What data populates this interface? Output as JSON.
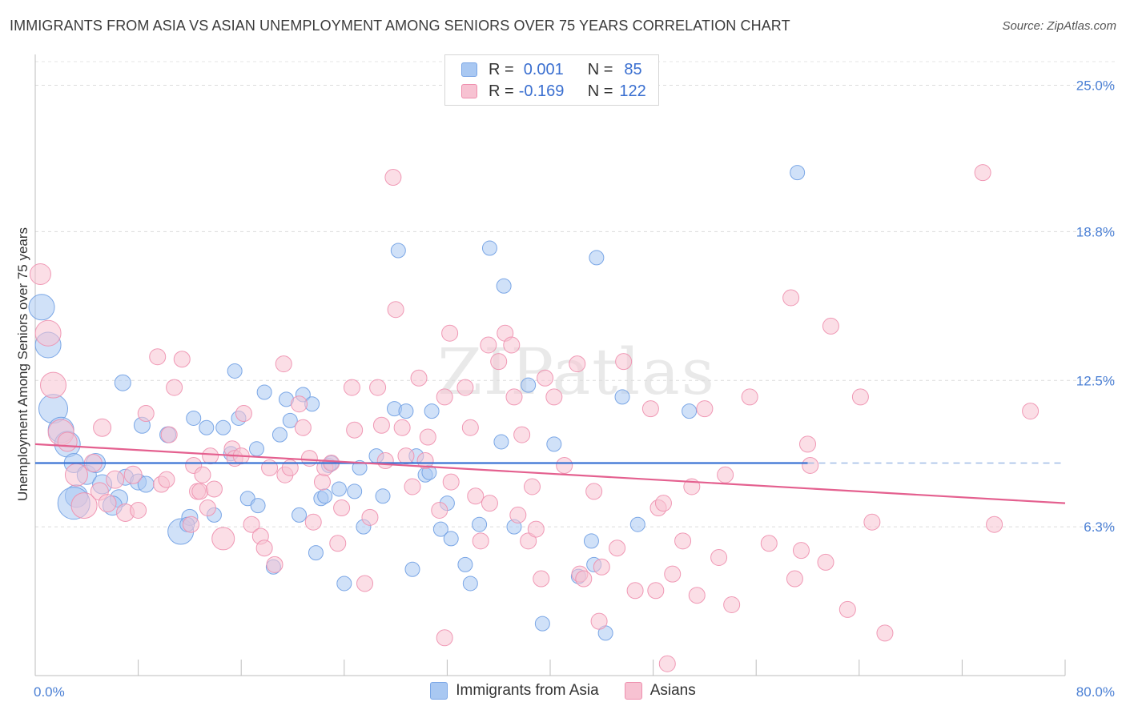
{
  "title": "IMMIGRANTS FROM ASIA VS ASIAN UNEMPLOYMENT AMONG SENIORS OVER 75 YEARS CORRELATION CHART",
  "source": "Source: ZipAtlas.com",
  "watermark": "ZIPatlas",
  "legend": {
    "rows": [
      {
        "r_label": "R =",
        "r_value": "0.001",
        "n_label": "N =",
        "n_value": "85",
        "color": "#a9c8f2",
        "border": "#7aa6e6"
      },
      {
        "r_label": "R =",
        "r_value": "-0.169",
        "n_label": "N =",
        "n_value": "122",
        "color": "#f7c2d2",
        "border": "#ee8fae"
      }
    ]
  },
  "bottom_legend": [
    {
      "label": "Immigrants from Asia",
      "color": "#a9c8f2",
      "border": "#7aa6e6"
    },
    {
      "label": "Asians",
      "color": "#f7c2d2",
      "border": "#ee8fae"
    }
  ],
  "chart_data": {
    "type": "scatter",
    "ylabel": "Unemployment Among Seniors over 75 years",
    "x_tick_labels": [
      "0.0%",
      "80.0%"
    ],
    "y_tick_labels": [
      "6.3%",
      "12.5%",
      "18.8%",
      "25.0%"
    ],
    "y_ticks": [
      6.3,
      12.5,
      18.8,
      25.0
    ],
    "xlim": [
      0,
      80
    ],
    "ylim": [
      0,
      26.0
    ],
    "grid": true,
    "series": [
      {
        "name": "Immigrants from Asia",
        "color": "#a9c8f2",
        "stroke": "#6f9fe3",
        "trend": {
          "x": [
            0,
            60
          ],
          "y": [
            9.0,
            9.0
          ],
          "dashed_to": 80,
          "color": "#3a73d4"
        },
        "points": [
          [
            0.5,
            15.6,
            16
          ],
          [
            1.0,
            14.0,
            16
          ],
          [
            1.4,
            11.3,
            18
          ],
          [
            2.0,
            10.4,
            16
          ],
          [
            2.5,
            9.8,
            16
          ],
          [
            3.0,
            9.0,
            12
          ],
          [
            3.2,
            7.6,
            14
          ],
          [
            3.0,
            7.3,
            20
          ],
          [
            4.0,
            8.5,
            12
          ],
          [
            4.7,
            9.0,
            12
          ],
          [
            5.2,
            8.1,
            12
          ],
          [
            6.5,
            7.5,
            11
          ],
          [
            6.0,
            7.2,
            12
          ],
          [
            7.0,
            8.4,
            10
          ],
          [
            8.0,
            8.2,
            10
          ],
          [
            8.6,
            8.1,
            10
          ],
          [
            6.8,
            12.4,
            10
          ],
          [
            8.3,
            10.6,
            10
          ],
          [
            10.3,
            10.2,
            10
          ],
          [
            11.3,
            6.1,
            16
          ],
          [
            12.0,
            6.7,
            10
          ],
          [
            11.8,
            6.4,
            9
          ],
          [
            12.3,
            10.9,
            9
          ],
          [
            13.3,
            10.5,
            9
          ],
          [
            13.9,
            6.8,
            9
          ],
          [
            14.6,
            10.5,
            9
          ],
          [
            15.2,
            9.4,
            9
          ],
          [
            15.5,
            12.9,
            9
          ],
          [
            15.8,
            10.9,
            9
          ],
          [
            16.5,
            7.5,
            9
          ],
          [
            17.2,
            9.6,
            9
          ],
          [
            17.3,
            7.2,
            9
          ],
          [
            17.8,
            12.0,
            9
          ],
          [
            18.5,
            4.6,
            9
          ],
          [
            19.0,
            10.2,
            9
          ],
          [
            19.5,
            11.7,
            9
          ],
          [
            19.8,
            10.8,
            9
          ],
          [
            20.5,
            6.8,
            9
          ],
          [
            20.8,
            11.9,
            9
          ],
          [
            21.5,
            11.5,
            9
          ],
          [
            21.8,
            5.2,
            9
          ],
          [
            22.2,
            7.5,
            9
          ],
          [
            22.5,
            7.6,
            9
          ],
          [
            22.8,
            8.9,
            9
          ],
          [
            23.0,
            9.0,
            9
          ],
          [
            23.6,
            7.9,
            9
          ],
          [
            24.0,
            3.9,
            9
          ],
          [
            24.8,
            7.8,
            9
          ],
          [
            25.2,
            8.8,
            9
          ],
          [
            25.5,
            6.3,
            9
          ],
          [
            26.5,
            9.3,
            9
          ],
          [
            27.0,
            7.6,
            9
          ],
          [
            27.9,
            11.3,
            9
          ],
          [
            28.2,
            18.0,
            9
          ],
          [
            28.8,
            11.2,
            9
          ],
          [
            29.3,
            4.5,
            9
          ],
          [
            29.6,
            9.3,
            9
          ],
          [
            30.3,
            8.5,
            9
          ],
          [
            30.8,
            11.2,
            9
          ],
          [
            30.6,
            8.6,
            9
          ],
          [
            31.5,
            6.2,
            9
          ],
          [
            32.0,
            7.3,
            9
          ],
          [
            32.3,
            5.8,
            9
          ],
          [
            33.4,
            4.7,
            9
          ],
          [
            33.8,
            3.9,
            9
          ],
          [
            34.5,
            6.4,
            9
          ],
          [
            35.3,
            18.1,
            9
          ],
          [
            36.2,
            9.9,
            9
          ],
          [
            36.4,
            16.5,
            9
          ],
          [
            37.2,
            6.3,
            9
          ],
          [
            38.3,
            12.3,
            9
          ],
          [
            39.4,
            2.2,
            9
          ],
          [
            40.3,
            9.8,
            9
          ],
          [
            42.2,
            4.2,
            9
          ],
          [
            43.2,
            5.7,
            9
          ],
          [
            43.4,
            4.7,
            9
          ],
          [
            43.6,
            17.7,
            9
          ],
          [
            44.3,
            1.8,
            9
          ],
          [
            45.6,
            11.8,
            9
          ],
          [
            46.8,
            6.4,
            9
          ],
          [
            50.8,
            11.2,
            9
          ],
          [
            59.2,
            21.3,
            9
          ]
        ]
      },
      {
        "name": "Asians",
        "color": "#f7c2d2",
        "stroke": "#ee8fae",
        "trend": {
          "x": [
            0,
            80
          ],
          "y": [
            9.8,
            7.3
          ],
          "color": "#e4608f"
        },
        "points": [
          [
            0.4,
            17.0,
            13
          ],
          [
            1.0,
            14.5,
            16
          ],
          [
            1.4,
            12.3,
            16
          ],
          [
            2.0,
            10.3,
            16
          ],
          [
            2.5,
            9.9,
            12
          ],
          [
            3.2,
            8.5,
            14
          ],
          [
            3.8,
            7.2,
            16
          ],
          [
            4.5,
            9.0,
            11
          ],
          [
            5.0,
            7.8,
            11
          ],
          [
            5.2,
            10.5,
            11
          ],
          [
            5.6,
            7.3,
            11
          ],
          [
            6.2,
            8.3,
            11
          ],
          [
            7.0,
            6.9,
            11
          ],
          [
            7.6,
            8.5,
            11
          ],
          [
            8.0,
            7.0,
            10
          ],
          [
            8.6,
            11.1,
            10
          ],
          [
            9.5,
            13.5,
            10
          ],
          [
            9.8,
            8.1,
            10
          ],
          [
            10.2,
            8.3,
            10
          ],
          [
            10.4,
            10.2,
            10
          ],
          [
            10.8,
            12.2,
            10
          ],
          [
            11.4,
            13.4,
            10
          ],
          [
            12.1,
            6.4,
            10
          ],
          [
            12.3,
            8.9,
            10
          ],
          [
            12.6,
            7.8,
            10
          ],
          [
            12.8,
            7.8,
            10
          ],
          [
            13.0,
            8.5,
            10
          ],
          [
            13.4,
            7.1,
            10
          ],
          [
            13.6,
            9.3,
            10
          ],
          [
            13.9,
            7.9,
            10
          ],
          [
            14.6,
            5.8,
            14
          ],
          [
            15.3,
            9.6,
            10
          ],
          [
            15.5,
            9.2,
            10
          ],
          [
            16.0,
            9.3,
            10
          ],
          [
            16.2,
            11.1,
            10
          ],
          [
            16.8,
            6.4,
            10
          ],
          [
            17.5,
            5.9,
            10
          ],
          [
            17.8,
            5.4,
            10
          ],
          [
            18.2,
            8.8,
            10
          ],
          [
            18.6,
            4.7,
            10
          ],
          [
            19.3,
            13.2,
            10
          ],
          [
            19.4,
            8.5,
            10
          ],
          [
            19.8,
            8.8,
            10
          ],
          [
            20.5,
            11.5,
            10
          ],
          [
            20.8,
            10.5,
            10
          ],
          [
            21.3,
            9.2,
            10
          ],
          [
            21.6,
            6.5,
            10
          ],
          [
            22.3,
            8.2,
            10
          ],
          [
            22.5,
            8.8,
            10
          ],
          [
            23.0,
            9.0,
            10
          ],
          [
            23.5,
            5.6,
            10
          ],
          [
            23.8,
            7.1,
            10
          ],
          [
            24.6,
            12.2,
            10
          ],
          [
            24.8,
            10.4,
            10
          ],
          [
            25.6,
            3.9,
            10
          ],
          [
            26.0,
            6.7,
            10
          ],
          [
            26.6,
            12.2,
            10
          ],
          [
            26.9,
            10.6,
            10
          ],
          [
            27.2,
            9.1,
            10
          ],
          [
            27.8,
            21.1,
            10
          ],
          [
            28.0,
            15.5,
            10
          ],
          [
            28.5,
            10.5,
            10
          ],
          [
            28.8,
            9.3,
            10
          ],
          [
            29.3,
            8.0,
            10
          ],
          [
            29.8,
            12.6,
            10
          ],
          [
            30.3,
            9.1,
            10
          ],
          [
            30.5,
            10.1,
            10
          ],
          [
            31.4,
            7.0,
            10
          ],
          [
            31.8,
            1.6,
            10
          ],
          [
            31.8,
            11.8,
            10
          ],
          [
            32.2,
            14.5,
            10
          ],
          [
            32.3,
            8.2,
            10
          ],
          [
            33.4,
            12.2,
            10
          ],
          [
            33.8,
            10.5,
            10
          ],
          [
            34.2,
            7.6,
            10
          ],
          [
            34.6,
            5.7,
            10
          ],
          [
            35.2,
            14.0,
            10
          ],
          [
            35.3,
            7.3,
            10
          ],
          [
            36.0,
            13.3,
            10
          ],
          [
            36.5,
            14.5,
            10
          ],
          [
            37.0,
            14.0,
            10
          ],
          [
            37.2,
            11.8,
            10
          ],
          [
            37.5,
            6.8,
            10
          ],
          [
            37.8,
            10.2,
            10
          ],
          [
            38.3,
            5.7,
            10
          ],
          [
            38.6,
            8.0,
            10
          ],
          [
            38.9,
            6.2,
            10
          ],
          [
            39.3,
            4.1,
            10
          ],
          [
            39.6,
            12.6,
            10
          ],
          [
            40.3,
            11.8,
            10
          ],
          [
            41.1,
            8.9,
            10
          ],
          [
            42.1,
            13.2,
            10
          ],
          [
            42.3,
            4.3,
            10
          ],
          [
            42.6,
            4.1,
            10
          ],
          [
            43.4,
            7.8,
            10
          ],
          [
            43.8,
            2.3,
            10
          ],
          [
            44.0,
            4.6,
            10
          ],
          [
            45.2,
            5.4,
            10
          ],
          [
            45.7,
            13.3,
            10
          ],
          [
            46.6,
            3.6,
            10
          ],
          [
            47.8,
            11.3,
            10
          ],
          [
            48.2,
            3.6,
            10
          ],
          [
            48.4,
            7.1,
            10
          ],
          [
            48.8,
            7.3,
            10
          ],
          [
            49.1,
            0.5,
            10
          ],
          [
            49.5,
            4.3,
            10
          ],
          [
            50.3,
            5.7,
            10
          ],
          [
            51.0,
            8.0,
            10
          ],
          [
            51.4,
            3.4,
            10
          ],
          [
            52.0,
            11.3,
            10
          ],
          [
            53.1,
            5.0,
            10
          ],
          [
            53.6,
            8.5,
            10
          ],
          [
            54.1,
            3.0,
            10
          ],
          [
            55.5,
            11.8,
            10
          ],
          [
            57.0,
            5.6,
            10
          ],
          [
            58.7,
            16.0,
            10
          ],
          [
            59.0,
            4.1,
            10
          ],
          [
            59.5,
            5.3,
            10
          ],
          [
            60.0,
            9.8,
            10
          ],
          [
            60.2,
            8.9,
            10
          ],
          [
            61.4,
            4.8,
            10
          ],
          [
            61.8,
            14.8,
            10
          ],
          [
            63.1,
            2.8,
            10
          ],
          [
            64.1,
            11.8,
            10
          ],
          [
            65.0,
            6.5,
            10
          ],
          [
            66.0,
            1.8,
            10
          ],
          [
            73.6,
            21.3,
            10
          ],
          [
            74.5,
            6.4,
            10
          ],
          [
            77.3,
            11.2,
            10
          ]
        ]
      }
    ]
  }
}
